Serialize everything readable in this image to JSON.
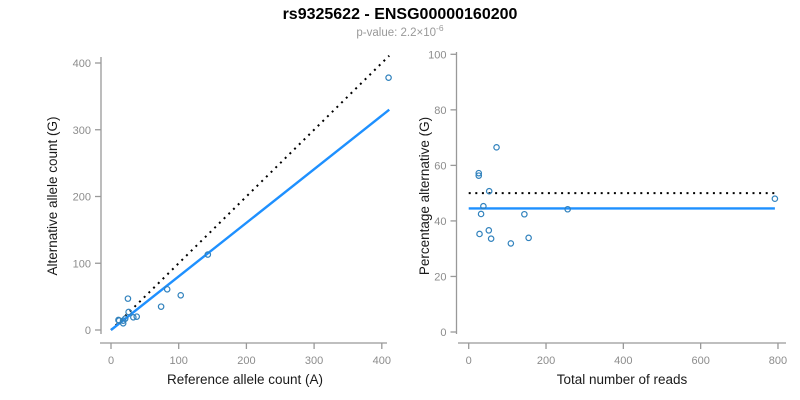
{
  "header": {
    "title": "rs9325622 - ENSG00000160200",
    "subtitle_prefix": "p-value: 2.2×10",
    "subtitle_exponent": "-6"
  },
  "colors": {
    "point": "#3182bd",
    "fit_line": "#1e90ff",
    "reference_line": "#000000",
    "axis_line": "#999999",
    "tick_label": "#8c8c8c",
    "axis_title": "#1a1a1a",
    "title": "#000000",
    "subtitle": "#999999"
  },
  "chart_data": [
    {
      "id": "allele-count-scatter",
      "type": "scatter",
      "title": "",
      "xlabel": "Reference allele count (A)",
      "ylabel": "Alternative allele count (G)",
      "xlim": [
        0,
        420
      ],
      "ylim": [
        0,
        420
      ],
      "xticks": [
        0,
        100,
        200,
        300,
        400
      ],
      "yticks": [
        0,
        100,
        200,
        300,
        400
      ],
      "grid": false,
      "points": [
        [
          11,
          15
        ],
        [
          12,
          14
        ],
        [
          18,
          10
        ],
        [
          18,
          14
        ],
        [
          21,
          17
        ],
        [
          25,
          47
        ],
        [
          26,
          27
        ],
        [
          33,
          19
        ],
        [
          38,
          20
        ],
        [
          74,
          35
        ],
        [
          83,
          61
        ],
        [
          103,
          52
        ],
        [
          143,
          113
        ],
        [
          410,
          378
        ]
      ],
      "lines": [
        {
          "name": "expected-1-to-1",
          "style": "dotted",
          "color": "#000000",
          "x1": 0,
          "y1": 0,
          "x2": 411,
          "y2": 411
        },
        {
          "name": "fitted-ratio",
          "style": "solid",
          "color": "#1e90ff",
          "x1": 0,
          "y1": 0,
          "x2": 411,
          "y2": 330
        }
      ]
    },
    {
      "id": "percentage-vs-reads-scatter",
      "type": "scatter",
      "title": "",
      "xlabel": "Total number of reads",
      "ylabel": "Percentage alternative (G)",
      "xlim": [
        0,
        830
      ],
      "ylim": [
        0,
        100
      ],
      "xticks": [
        0,
        200,
        400,
        600,
        800
      ],
      "yticks": [
        0,
        20,
        40,
        60,
        80,
        100
      ],
      "grid": false,
      "points": [
        [
          26,
          56.3
        ],
        [
          26,
          57.2
        ],
        [
          28,
          35.3
        ],
        [
          32,
          42.5
        ],
        [
          38,
          45.3
        ],
        [
          52,
          36.6
        ],
        [
          53,
          50.7
        ],
        [
          58,
          33.6
        ],
        [
          72,
          66.5
        ],
        [
          109,
          31.9
        ],
        [
          144,
          42.4
        ],
        [
          155,
          33.9
        ],
        [
          256,
          44.2
        ],
        [
          792,
          48
        ]
      ],
      "lines": [
        {
          "name": "expected-50-percent",
          "style": "dotted",
          "color": "#000000",
          "x1": 0,
          "y1": 50,
          "x2": 792,
          "y2": 50
        },
        {
          "name": "fitted-percentage",
          "style": "solid",
          "color": "#1e90ff",
          "x1": 0,
          "y1": 44.5,
          "x2": 792,
          "y2": 44.5
        }
      ]
    }
  ]
}
